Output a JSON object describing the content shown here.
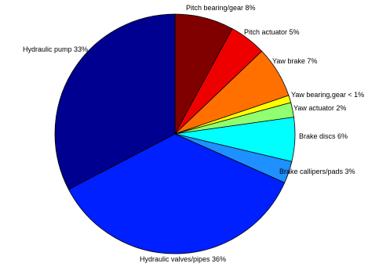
{
  "chart_data": {
    "type": "pie",
    "title": "",
    "start_angle_deg": 90,
    "direction": "clockwise",
    "slices": [
      {
        "label": "Pitch bearing/gear 8%",
        "value": 8,
        "color": "#800000"
      },
      {
        "label": "Pitch actuator 5%",
        "value": 5,
        "color": "#ee0000"
      },
      {
        "label": "Yaw brake 7%",
        "value": 7,
        "color": "#ff7000"
      },
      {
        "label": "Yaw bearing,gear < 1%",
        "value": 1,
        "color": "#ffff00"
      },
      {
        "label": "Yaw actuator 2%",
        "value": 2,
        "color": "#90ff70"
      },
      {
        "label": "Brake discs 6%",
        "value": 6,
        "color": "#00ffff"
      },
      {
        "label": "Brake callipers/pads 3%",
        "value": 3,
        "color": "#1e90ff"
      },
      {
        "label": "Hydraulic valves/pipes 36%",
        "value": 36,
        "color": "#0020ff"
      },
      {
        "label": "Hydraulic pump 33%",
        "value": 33,
        "color": "#000090"
      }
    ]
  }
}
